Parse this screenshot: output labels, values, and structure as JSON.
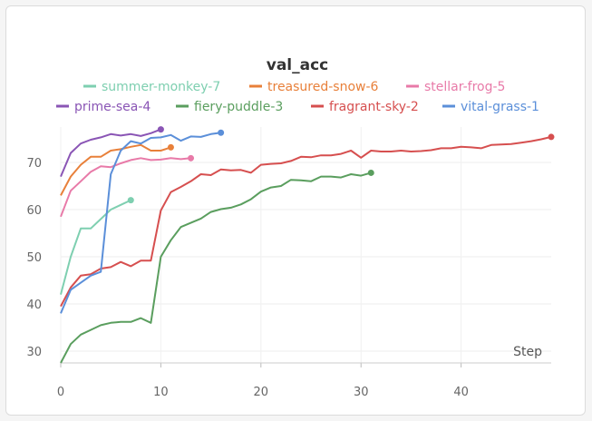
{
  "chart_data": {
    "type": "line",
    "title": "val_acc",
    "xlabel": "Step",
    "ylabel": "",
    "xlim": [
      0,
      49
    ],
    "ylim": [
      28,
      78
    ],
    "xticks": [
      0,
      10,
      20,
      30,
      40
    ],
    "yticks": [
      30,
      40,
      50,
      60,
      70
    ],
    "grid": true,
    "legend_position": "top",
    "series": [
      {
        "name": "summer-monkey-7",
        "color": "#7ecfb0",
        "x": [
          0,
          1,
          2,
          3,
          4,
          5,
          6,
          7
        ],
        "y": [
          42,
          50,
          56,
          56,
          58,
          60,
          61,
          62
        ]
      },
      {
        "name": "treasured-snow-6",
        "color": "#e8803a",
        "x": [
          0,
          1,
          2,
          3,
          4,
          5,
          6,
          7,
          8,
          9,
          10,
          11
        ],
        "y": [
          63,
          67,
          69.5,
          71.2,
          71.2,
          72.5,
          72.8,
          73.3,
          73.7,
          72.5,
          72.5,
          73.2
        ]
      },
      {
        "name": "stellar-frog-5",
        "color": "#e87aa8",
        "x": [
          0,
          1,
          2,
          3,
          4,
          5,
          6,
          7,
          8,
          9,
          10,
          11,
          12,
          13
        ],
        "y": [
          58.5,
          64,
          66,
          68,
          69.2,
          69,
          69.8,
          70.5,
          70.9,
          70.5,
          70.6,
          70.9,
          70.7,
          70.9
        ]
      },
      {
        "name": "prime-sea-4",
        "color": "#8a55b5",
        "x": [
          0,
          1,
          2,
          3,
          4,
          5,
          6,
          7,
          8,
          9,
          10
        ],
        "y": [
          67,
          72,
          74,
          74.8,
          75.3,
          76,
          75.7,
          76,
          75.6,
          76.2,
          77
        ]
      },
      {
        "name": "fiery-puddle-3",
        "color": "#5a9e5e",
        "x": [
          0,
          1,
          2,
          3,
          4,
          5,
          6,
          7,
          8,
          9,
          10,
          11,
          12,
          13,
          14,
          15,
          16,
          17,
          18,
          19,
          20,
          21,
          22,
          23,
          24,
          25,
          26,
          27,
          28,
          29,
          30,
          31
        ],
        "y": [
          27.5,
          31.5,
          33.5,
          34.5,
          35.5,
          36,
          36.2,
          36.2,
          37,
          36,
          50,
          53.5,
          56.3,
          57.2,
          58.1,
          59.5,
          60.1,
          60.4,
          61.1,
          62.2,
          63.8,
          64.7,
          65,
          66.3,
          66.2,
          66,
          67,
          67,
          66.8,
          67.5,
          67.2,
          67.8
        ]
      },
      {
        "name": "fragrant-sky-2",
        "color": "#d64f4f",
        "x": [
          0,
          1,
          2,
          3,
          4,
          5,
          6,
          7,
          8,
          9,
          10,
          11,
          12,
          13,
          14,
          15,
          16,
          17,
          18,
          19,
          20,
          21,
          22,
          23,
          24,
          25,
          26,
          27,
          28,
          29,
          30,
          31,
          32,
          33,
          34,
          35,
          36,
          37,
          38,
          39,
          40,
          41,
          42,
          43,
          44,
          45,
          46,
          47,
          48,
          49
        ],
        "y": [
          39.5,
          43.5,
          46,
          46.3,
          47.5,
          47.8,
          48.9,
          48,
          49.2,
          49.2,
          59.8,
          63.7,
          64.8,
          66,
          67.5,
          67.3,
          68.5,
          68.3,
          68.4,
          67.8,
          69.5,
          69.7,
          69.8,
          70.3,
          71.2,
          71.1,
          71.5,
          71.5,
          71.8,
          72.5,
          71,
          72.5,
          72.3,
          72.3,
          72.5,
          72.3,
          72.4,
          72.6,
          73,
          73,
          73.3,
          73.2,
          73,
          73.7,
          73.8,
          73.9,
          74.2,
          74.5,
          74.9,
          75.4
        ]
      },
      {
        "name": "vital-grass-1",
        "color": "#5b8fd9",
        "x": [
          0,
          1,
          2,
          3,
          4,
          5,
          6,
          7,
          8,
          9,
          10,
          11,
          12,
          13,
          14,
          15,
          16
        ],
        "y": [
          38,
          43,
          44.5,
          46,
          46.8,
          67.5,
          72.5,
          74.5,
          74,
          75.2,
          75.3,
          75.8,
          74.6,
          75.5,
          75.4,
          76,
          76.3
        ]
      }
    ]
  }
}
